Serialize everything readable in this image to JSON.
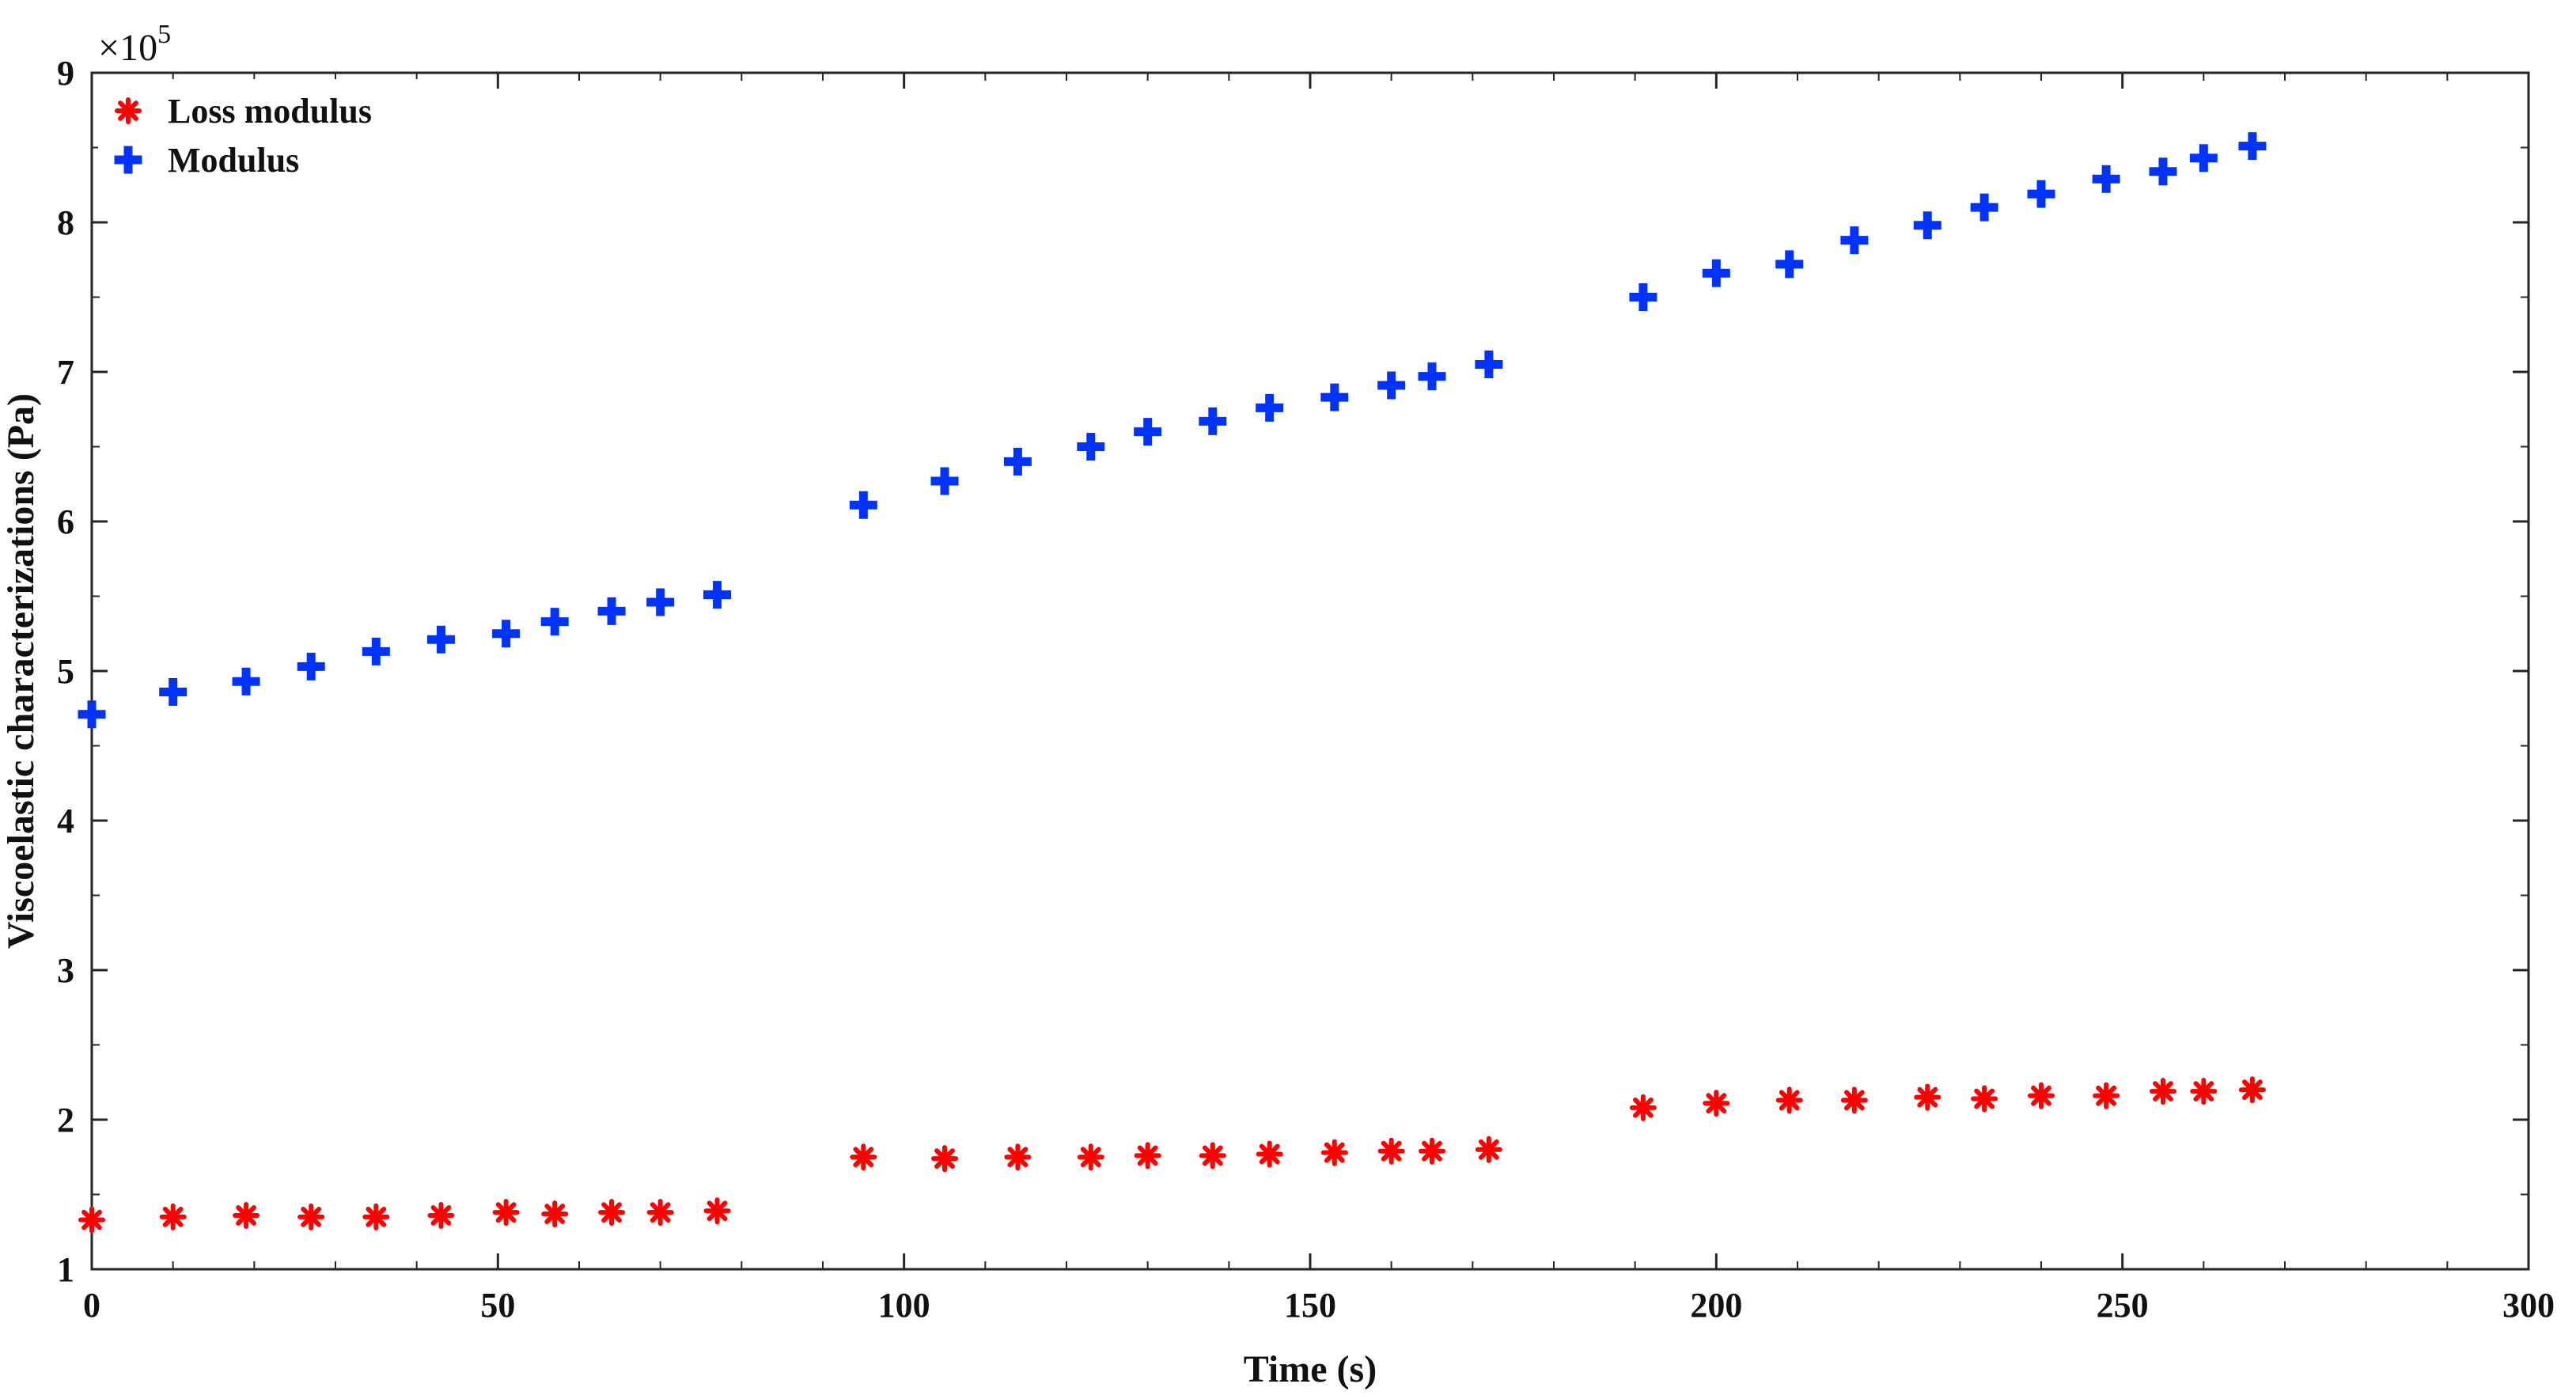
{
  "chart_data": {
    "type": "scatter",
    "title": "",
    "xlabel": "Time (s)",
    "ylabel": "Viscoelastic characterizations (Pa)",
    "xlim": [
      0,
      300
    ],
    "ylim": [
      1,
      9
    ],
    "x_ticks": [
      "0",
      "50",
      "100",
      "150",
      "200",
      "250",
      "300"
    ],
    "y_ticks": [
      "1",
      "2",
      "3",
      "4",
      "5",
      "6",
      "7",
      "8",
      "9"
    ],
    "y_multiplier": {
      "base": "×10",
      "exponent": "5"
    },
    "grid": false,
    "legend_position": "top-left",
    "series": [
      {
        "name": "Loss modulus",
        "marker": "asterisk",
        "color": "#ff0000",
        "x": [
          0,
          10,
          19,
          27,
          35,
          43,
          51,
          57,
          64,
          70,
          77,
          95,
          105,
          114,
          123,
          130,
          138,
          145,
          153,
          160,
          165,
          172,
          191,
          200,
          209,
          217,
          226,
          233,
          240,
          248,
          255,
          260,
          266
        ],
        "y": [
          1.33,
          1.35,
          1.36,
          1.35,
          1.35,
          1.36,
          1.38,
          1.37,
          1.38,
          1.38,
          1.39,
          1.75,
          1.74,
          1.75,
          1.75,
          1.76,
          1.76,
          1.77,
          1.78,
          1.79,
          1.79,
          1.8,
          2.08,
          2.11,
          2.13,
          2.13,
          2.15,
          2.14,
          2.16,
          2.16,
          2.19,
          2.19,
          2.2
        ]
      },
      {
        "name": "Modulus",
        "marker": "plus",
        "color": "#0033ff",
        "x": [
          0,
          10,
          19,
          27,
          35,
          43,
          51,
          57,
          64,
          70,
          77,
          95,
          105,
          114,
          123,
          130,
          138,
          145,
          153,
          160,
          165,
          172,
          191,
          200,
          209,
          217,
          226,
          233,
          240,
          248,
          255,
          260,
          266
        ],
        "y": [
          4.71,
          4.86,
          4.93,
          5.03,
          5.13,
          5.21,
          5.25,
          5.33,
          5.4,
          5.46,
          5.51,
          6.11,
          6.27,
          6.4,
          6.5,
          6.6,
          6.67,
          6.76,
          6.83,
          6.91,
          6.97,
          7.05,
          7.5,
          7.66,
          7.72,
          7.88,
          7.98,
          8.1,
          8.19,
          8.29,
          8.34,
          8.43,
          8.51
        ]
      }
    ]
  }
}
